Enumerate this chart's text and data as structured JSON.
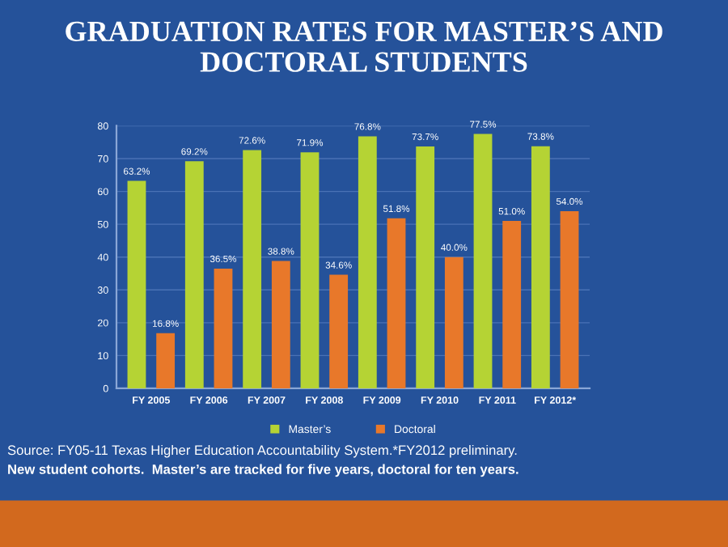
{
  "chart_data": {
    "type": "bar",
    "title": "GRADUATION RATES FOR MASTER’S AND DOCTORAL STUDENTS",
    "categories": [
      "FY 2005",
      "FY 2006",
      "FY 2007",
      "FY 2008",
      "FY 2009",
      "FY 2010",
      "FY 2011",
      "FY 2012*"
    ],
    "series": [
      {
        "name": "Master’s",
        "color": "#b5d334",
        "values": [
          63.2,
          69.2,
          72.6,
          71.9,
          76.8,
          73.7,
          77.5,
          73.8
        ],
        "value_labels": [
          "63.2%",
          "69.2%",
          "72.6%",
          "71.9%",
          "76.8%",
          "73.7%",
          "77.5%",
          "73.8%"
        ]
      },
      {
        "name": "Doctoral",
        "color": "#e8782a",
        "values": [
          16.8,
          36.5,
          38.8,
          34.6,
          51.8,
          40.0,
          51.0,
          54.0
        ],
        "value_labels": [
          "16.8%",
          "36.5%",
          "38.8%",
          "34.6%",
          "51.8%",
          "40.0%",
          "51.0%",
          "54.0%"
        ]
      }
    ],
    "ylim": [
      0,
      80
    ],
    "yticks": [
      0,
      10,
      20,
      30,
      40,
      50,
      60,
      70,
      80
    ],
    "grid": "y",
    "legend": "bottom",
    "annotations": [
      "Source: FY05-11 Texas Higher Education Accountability System.*FY2012 preliminary.",
      "New student cohorts.  Master’s are tracked for five years, doctoral for ten years."
    ]
  }
}
